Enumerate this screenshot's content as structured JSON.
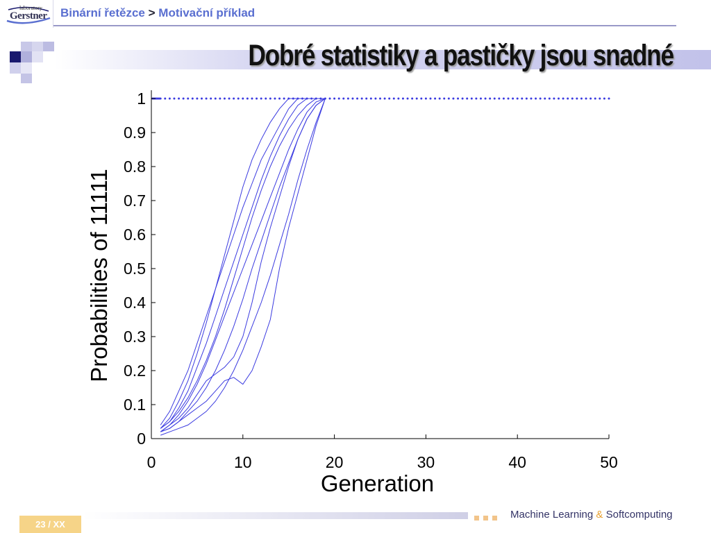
{
  "header": {
    "logo_small": "laboratory",
    "logo_main": "Gerstner",
    "breadcrumb_part1": "Binární řetězce",
    "breadcrumb_sep": ">",
    "breadcrumb_part2": "Motivační příklad"
  },
  "slide": {
    "title": "Dobré statistiky a pastičky jsou snadné"
  },
  "footer": {
    "page": "23 / XX",
    "text_left": "Machine Learning",
    "text_amp": "&",
    "text_right": "Softcomputing"
  },
  "colors": {
    "accent_blue": "#5a6fd0",
    "series_color": "#3a3ae0",
    "deco_navy": "#1a1a6e",
    "page_badge": "#f6d488"
  },
  "chart_data": {
    "type": "line",
    "xlabel": "Generation",
    "ylabel": "Probabilities of 11111",
    "xlim": [
      0,
      50
    ],
    "ylim": [
      0,
      1
    ],
    "xticks": [
      "0",
      "10",
      "20",
      "30",
      "40",
      "50"
    ],
    "yticks": [
      "0",
      "0.1",
      "0.2",
      "0.3",
      "0.4",
      "0.5",
      "0.6",
      "0.7",
      "0.8",
      "0.9",
      "1"
    ],
    "grid": false,
    "series": [
      {
        "style": "solid",
        "x": [
          1,
          2,
          3,
          4,
          5,
          6,
          7,
          8,
          9,
          10,
          11,
          12,
          13,
          14,
          15,
          16,
          17,
          18,
          19
        ],
        "values": [
          0.02,
          0.04,
          0.06,
          0.09,
          0.13,
          0.17,
          0.19,
          0.21,
          0.24,
          0.3,
          0.4,
          0.52,
          0.62,
          0.71,
          0.8,
          0.88,
          0.94,
          0.98,
          1.0
        ]
      },
      {
        "style": "solid",
        "x": [
          1,
          2,
          3,
          4,
          5,
          6,
          7,
          8,
          9,
          10,
          11,
          12,
          13,
          14,
          15,
          16,
          17,
          18,
          19
        ],
        "values": [
          0.04,
          0.08,
          0.14,
          0.2,
          0.28,
          0.36,
          0.44,
          0.52,
          0.6,
          0.68,
          0.75,
          0.82,
          0.87,
          0.92,
          0.97,
          1.0,
          1.0,
          1.0,
          1.0
        ]
      },
      {
        "style": "solid",
        "x": [
          1,
          2,
          3,
          4,
          5,
          6,
          7,
          8,
          9,
          10,
          11,
          12,
          13,
          14,
          15,
          16,
          17,
          18,
          19
        ],
        "values": [
          0.03,
          0.06,
          0.11,
          0.17,
          0.25,
          0.34,
          0.44,
          0.54,
          0.64,
          0.74,
          0.82,
          0.88,
          0.93,
          0.97,
          1.0,
          1.0,
          1.0,
          1.0,
          1.0
        ]
      },
      {
        "style": "solid",
        "x": [
          1,
          2,
          3,
          4,
          5,
          6,
          7,
          8,
          9,
          10,
          11,
          12,
          13,
          14,
          15,
          16,
          17,
          18,
          19
        ],
        "values": [
          0.03,
          0.05,
          0.09,
          0.14,
          0.21,
          0.28,
          0.36,
          0.44,
          0.52,
          0.6,
          0.68,
          0.76,
          0.83,
          0.89,
          0.94,
          0.98,
          1.0,
          1.0,
          1.0
        ]
      },
      {
        "style": "solid",
        "x": [
          1,
          2,
          3,
          4,
          5,
          6,
          7,
          8,
          9,
          10,
          11,
          12,
          13,
          14,
          15,
          16,
          17,
          18,
          19
        ],
        "values": [
          0.02,
          0.04,
          0.07,
          0.11,
          0.16,
          0.22,
          0.29,
          0.36,
          0.43,
          0.5,
          0.57,
          0.64,
          0.71,
          0.78,
          0.85,
          0.91,
          0.96,
          0.99,
          1.0
        ]
      },
      {
        "style": "solid",
        "x": [
          1,
          2,
          3,
          4,
          5,
          6,
          7,
          8,
          9,
          10,
          11,
          12,
          13,
          14,
          15,
          16,
          17,
          18,
          19
        ],
        "values": [
          0.02,
          0.03,
          0.05,
          0.08,
          0.11,
          0.15,
          0.2,
          0.26,
          0.33,
          0.41,
          0.5,
          0.58,
          0.66,
          0.74,
          0.81,
          0.88,
          0.94,
          0.98,
          1.0
        ]
      },
      {
        "style": "solid",
        "x": [
          1,
          2,
          3,
          4,
          5,
          6,
          7,
          8,
          9,
          10,
          11,
          12,
          13,
          14,
          15,
          16,
          17,
          18,
          19
        ],
        "values": [
          0.02,
          0.03,
          0.05,
          0.07,
          0.09,
          0.11,
          0.14,
          0.17,
          0.18,
          0.16,
          0.2,
          0.27,
          0.35,
          0.5,
          0.62,
          0.72,
          0.82,
          0.92,
          1.0
        ]
      },
      {
        "style": "solid",
        "x": [
          1,
          2,
          3,
          4,
          5,
          6,
          7,
          8,
          9,
          10,
          11,
          12,
          13,
          14,
          15,
          16,
          17,
          18,
          19
        ],
        "values": [
          0.01,
          0.02,
          0.03,
          0.04,
          0.06,
          0.08,
          0.11,
          0.15,
          0.2,
          0.26,
          0.33,
          0.4,
          0.48,
          0.57,
          0.66,
          0.76,
          0.85,
          0.93,
          1.0
        ]
      },
      {
        "style": "solid",
        "x": [
          1,
          2,
          3,
          4,
          5,
          6,
          7,
          8,
          9,
          10,
          11,
          12,
          13,
          14,
          15,
          16,
          17,
          18,
          19
        ],
        "values": [
          0.03,
          0.05,
          0.08,
          0.12,
          0.17,
          0.23,
          0.3,
          0.38,
          0.47,
          0.56,
          0.65,
          0.73,
          0.8,
          0.86,
          0.91,
          0.95,
          0.98,
          1.0,
          1.0
        ]
      },
      {
        "style": "dotted",
        "x": [
          1,
          2,
          3,
          4,
          5,
          6,
          7,
          8,
          9,
          10,
          11,
          12,
          13,
          14,
          15,
          16,
          17,
          18,
          19,
          20,
          21,
          22,
          23,
          24,
          25,
          26,
          27,
          28,
          29,
          30,
          31,
          32,
          33,
          34,
          35,
          36,
          37,
          38,
          39,
          40,
          41,
          42,
          43,
          44,
          45,
          46,
          47,
          48,
          49,
          50
        ],
        "values": [
          1,
          1,
          1,
          1,
          1,
          1,
          1,
          1,
          1,
          1,
          1,
          1,
          1,
          1,
          1,
          1,
          1,
          1,
          1,
          1,
          1,
          1,
          1,
          1,
          1,
          1,
          1,
          1,
          1,
          1,
          1,
          1,
          1,
          1,
          1,
          1,
          1,
          1,
          1,
          1,
          1,
          1,
          1,
          1,
          1,
          1,
          1,
          1,
          1,
          1
        ]
      }
    ]
  }
}
